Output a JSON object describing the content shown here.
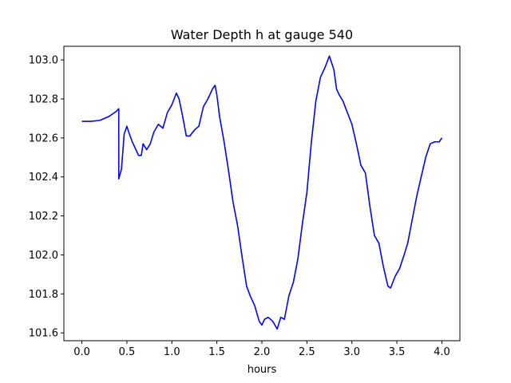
{
  "chart_data": {
    "type": "line",
    "title": "Water Depth h at gauge 540",
    "xlabel": "hours",
    "ylabel": "",
    "xlim": [
      -0.2,
      4.2
    ],
    "ylim": [
      101.56,
      103.07
    ],
    "xticks": [
      0.0,
      0.5,
      1.0,
      1.5,
      2.0,
      2.5,
      3.0,
      3.5,
      4.0
    ],
    "xtick_labels": [
      "0.0",
      "0.5",
      "1.0",
      "1.5",
      "2.0",
      "2.5",
      "3.0",
      "3.5",
      "4.0"
    ],
    "yticks": [
      101.6,
      101.8,
      102.0,
      102.2,
      102.4,
      102.6,
      102.8,
      103.0
    ],
    "ytick_labels": [
      "101.6",
      "101.8",
      "102.0",
      "102.2",
      "102.4",
      "102.6",
      "102.8",
      "103.0"
    ],
    "grid": false,
    "series": [
      {
        "color": "#0000ff",
        "x": [
          0.0,
          0.1,
          0.2,
          0.3,
          0.38,
          0.41,
          0.41,
          0.44,
          0.47,
          0.5,
          0.52,
          0.56,
          0.6,
          0.63,
          0.66,
          0.68,
          0.72,
          0.76,
          0.8,
          0.85,
          0.9,
          0.95,
          1.0,
          1.05,
          1.08,
          1.12,
          1.16,
          1.2,
          1.25,
          1.3,
          1.35,
          1.4,
          1.45,
          1.48,
          1.5,
          1.53,
          1.58,
          1.63,
          1.68,
          1.73,
          1.78,
          1.83,
          1.87,
          1.92,
          1.97,
          2.0,
          2.03,
          2.07,
          2.12,
          2.17,
          2.21,
          2.25,
          2.3,
          2.35,
          2.4,
          2.45,
          2.5,
          2.55,
          2.6,
          2.65,
          2.7,
          2.75,
          2.8,
          2.83,
          2.86,
          2.9,
          2.95,
          3.0,
          3.05,
          3.1,
          3.15,
          3.2,
          3.25,
          3.3,
          3.35,
          3.4,
          3.43,
          3.48,
          3.53,
          3.58,
          3.62,
          3.67,
          3.72,
          3.77,
          3.82,
          3.87,
          3.92,
          3.97,
          4.0
        ],
        "y": [
          102.685,
          102.685,
          102.69,
          102.71,
          102.735,
          102.75,
          102.39,
          102.44,
          102.62,
          102.66,
          102.63,
          102.58,
          102.54,
          102.51,
          102.51,
          102.57,
          102.54,
          102.57,
          102.63,
          102.67,
          102.65,
          102.73,
          102.77,
          102.83,
          102.8,
          102.71,
          102.61,
          102.61,
          102.64,
          102.66,
          102.76,
          102.8,
          102.85,
          102.87,
          102.82,
          102.71,
          102.58,
          102.43,
          102.27,
          102.15,
          101.99,
          101.84,
          101.79,
          101.74,
          101.66,
          101.64,
          101.67,
          101.68,
          101.66,
          101.62,
          101.68,
          101.67,
          101.79,
          101.86,
          101.98,
          102.16,
          102.32,
          102.58,
          102.79,
          102.91,
          102.96,
          103.02,
          102.95,
          102.85,
          102.82,
          102.79,
          102.73,
          102.67,
          102.57,
          102.46,
          102.42,
          102.25,
          102.1,
          102.06,
          101.94,
          101.84,
          101.83,
          101.89,
          101.93,
          102.0,
          102.06,
          102.18,
          102.3,
          102.4,
          102.5,
          102.57,
          102.58,
          102.58,
          102.6
        ]
      }
    ]
  }
}
